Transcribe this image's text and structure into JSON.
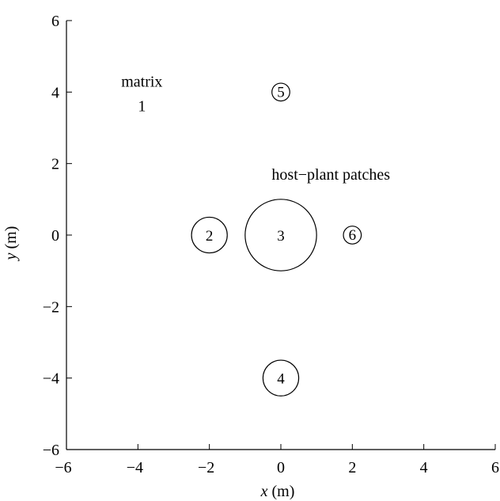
{
  "chart_data": {
    "type": "diagram",
    "x_axis": {
      "label_var": "x",
      "label_unit": "(m)",
      "range": [
        -6,
        6
      ],
      "ticks": [
        -6,
        -4,
        -2,
        0,
        2,
        4,
        6
      ],
      "tick_labels": [
        "−6",
        "−4",
        "−2",
        "0",
        "2",
        "4",
        "6"
      ]
    },
    "y_axis": {
      "label_var": "y",
      "label_unit": "(m)",
      "range": [
        -6,
        6
      ],
      "ticks": [
        -6,
        -4,
        -2,
        0,
        2,
        4,
        6
      ],
      "tick_labels": [
        "−6",
        "−4",
        "−2",
        "0",
        "2",
        "4",
        "6"
      ]
    },
    "matrix": {
      "label": "matrix",
      "id": "1",
      "x": -4,
      "y": 4
    },
    "patches_label": "host−plant patches",
    "patches": [
      {
        "id": "2",
        "x": -2,
        "y": 0,
        "r": 0.5
      },
      {
        "id": "3",
        "x": 0,
        "y": 0,
        "r": 1
      },
      {
        "id": "4",
        "x": 0,
        "y": -4,
        "r": 0.5
      },
      {
        "id": "5",
        "x": 0,
        "y": 4,
        "r": 0.25
      },
      {
        "id": "6",
        "x": 2,
        "y": 0,
        "r": 0.25
      }
    ]
  }
}
